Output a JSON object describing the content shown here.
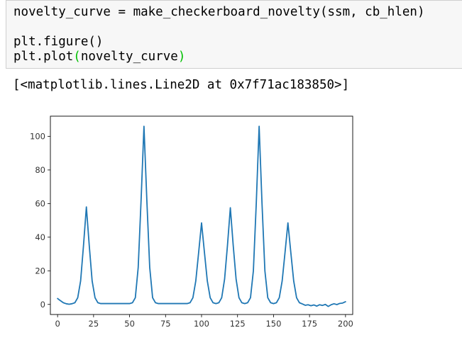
{
  "cell": {
    "line1": "novelty_curve = make_checkerboard_novelty(ssm, cb_hlen)",
    "line2": "",
    "line3": "plt.figure()",
    "line4_prefix": "plt.plot",
    "line4_open": "(",
    "line4_arg": "novelty_curve",
    "line4_close": ")"
  },
  "output": {
    "repr": "[<matplotlib.lines.Line2D at 0x7f71ac183850>]"
  },
  "chart_data": {
    "type": "line",
    "title": "",
    "xlabel": "",
    "ylabel": "",
    "xlim": [
      -5,
      205
    ],
    "ylim": [
      -6,
      112
    ],
    "xticks": [
      0,
      25,
      50,
      75,
      100,
      125,
      150,
      175,
      200
    ],
    "yticks": [
      0,
      20,
      40,
      60,
      80,
      100
    ],
    "grid": false,
    "line_color": "#1f77b4",
    "series": [
      {
        "points": [
          [
            0,
            3.5
          ],
          [
            2,
            2.2
          ],
          [
            4,
            1.0
          ],
          [
            6,
            0.4
          ],
          [
            8,
            0.1
          ],
          [
            10,
            0.4
          ],
          [
            12,
            1.0
          ],
          [
            14,
            4.0
          ],
          [
            16,
            14.0
          ],
          [
            18,
            35.0
          ],
          [
            20,
            58.0
          ],
          [
            22,
            35.0
          ],
          [
            24,
            14.0
          ],
          [
            26,
            4.0
          ],
          [
            28,
            1.0
          ],
          [
            30,
            0.5
          ],
          [
            35,
            0.5
          ],
          [
            40,
            0.5
          ],
          [
            45,
            0.5
          ],
          [
            50,
            0.5
          ],
          [
            52,
            1.0
          ],
          [
            54,
            4.0
          ],
          [
            56,
            22.0
          ],
          [
            58,
            62.0
          ],
          [
            60,
            106.0
          ],
          [
            62,
            62.0
          ],
          [
            64,
            22.0
          ],
          [
            66,
            4.0
          ],
          [
            68,
            1.0
          ],
          [
            70,
            0.5
          ],
          [
            75,
            0.5
          ],
          [
            80,
            0.5
          ],
          [
            85,
            0.5
          ],
          [
            90,
            0.5
          ],
          [
            92,
            1.0
          ],
          [
            94,
            4.0
          ],
          [
            96,
            14.0
          ],
          [
            98,
            31.0
          ],
          [
            100,
            48.5
          ],
          [
            102,
            31.0
          ],
          [
            104,
            14.0
          ],
          [
            106,
            4.0
          ],
          [
            108,
            1.0
          ],
          [
            110,
            0.5
          ],
          [
            112,
            1.0
          ],
          [
            114,
            4.0
          ],
          [
            116,
            15.0
          ],
          [
            118,
            35.0
          ],
          [
            120,
            57.5
          ],
          [
            122,
            35.0
          ],
          [
            124,
            15.0
          ],
          [
            126,
            4.0
          ],
          [
            128,
            1.0
          ],
          [
            130,
            0.5
          ],
          [
            132,
            1.0
          ],
          [
            134,
            4.0
          ],
          [
            136,
            20.0
          ],
          [
            138,
            60.0
          ],
          [
            140,
            106.0
          ],
          [
            142,
            60.0
          ],
          [
            144,
            20.0
          ],
          [
            146,
            4.0
          ],
          [
            148,
            1.0
          ],
          [
            150,
            0.5
          ],
          [
            152,
            1.0
          ],
          [
            154,
            4.0
          ],
          [
            156,
            14.0
          ],
          [
            158,
            31.0
          ],
          [
            160,
            48.5
          ],
          [
            162,
            31.0
          ],
          [
            164,
            14.0
          ],
          [
            166,
            4.0
          ],
          [
            168,
            1.0
          ],
          [
            170,
            0.3
          ],
          [
            172,
            -0.5
          ],
          [
            174,
            -0.2
          ],
          [
            176,
            -0.8
          ],
          [
            178,
            -0.3
          ],
          [
            180,
            -1.0
          ],
          [
            182,
            -0.2
          ],
          [
            184,
            -0.6
          ],
          [
            186,
            0.0
          ],
          [
            188,
            -1.2
          ],
          [
            190,
            -0.2
          ],
          [
            192,
            0.4
          ],
          [
            194,
            -0.1
          ],
          [
            196,
            0.6
          ],
          [
            198,
            0.8
          ],
          [
            200,
            1.6
          ]
        ]
      }
    ]
  }
}
